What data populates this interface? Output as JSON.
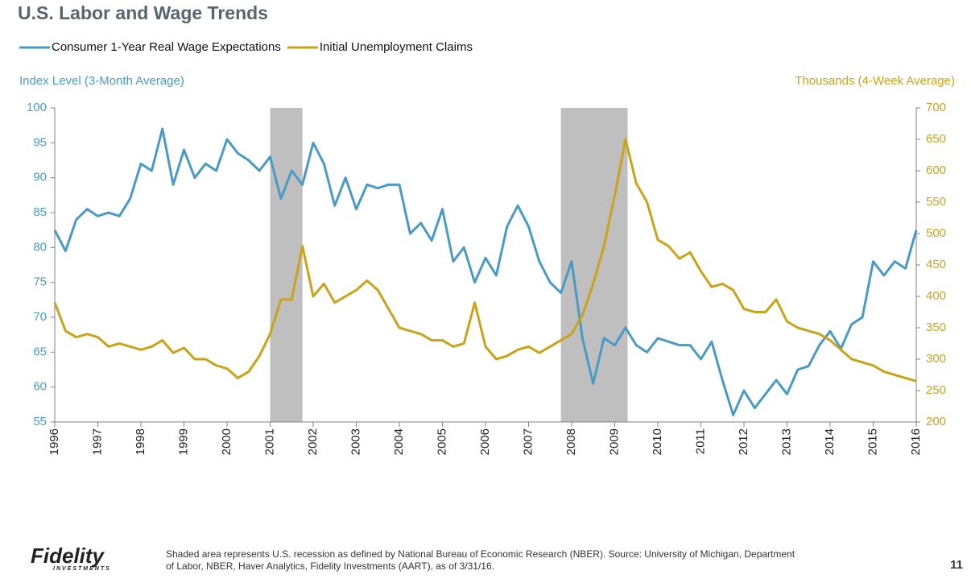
{
  "chart_data": {
    "type": "line",
    "title": "U.S. Labor and Wage Trends",
    "y_label": "Index Level (3-Month Average)",
    "y2_label": "Thousands (4-Week Average)",
    "grid": false,
    "recession_color": "#bfbfbf",
    "recessions": [
      {
        "start": 2001,
        "end": 2001.75
      },
      {
        "start": 2007.75,
        "end": 2009.3
      }
    ],
    "xlim": [
      1996,
      2016
    ],
    "xticks": [
      1996,
      1997,
      1998,
      1999,
      2000,
      2001,
      2002,
      2003,
      2004,
      2005,
      2006,
      2007,
      2008,
      2009,
      2010,
      2011,
      2012,
      2013,
      2014,
      2015,
      2016
    ],
    "ylim": [
      55,
      100
    ],
    "yticks": [
      55,
      60,
      65,
      70,
      75,
      80,
      85,
      90,
      95,
      100
    ],
    "y2lim": [
      200,
      700
    ],
    "y2ticks": [
      200,
      250,
      300,
      350,
      400,
      450,
      500,
      550,
      600,
      650,
      700
    ],
    "x": [
      1996,
      1996.25,
      1996.5,
      1996.75,
      1997,
      1997.25,
      1997.5,
      1997.75,
      1998,
      1998.25,
      1998.5,
      1998.75,
      1999,
      1999.25,
      1999.5,
      1999.75,
      2000,
      2000.25,
      2000.5,
      2000.75,
      2001,
      2001.25,
      2001.5,
      2001.75,
      2002,
      2002.25,
      2002.5,
      2002.75,
      2003,
      2003.25,
      2003.5,
      2003.75,
      2004,
      2004.25,
      2004.5,
      2004.75,
      2005,
      2005.25,
      2005.5,
      2005.75,
      2006,
      2006.25,
      2006.5,
      2006.75,
      2007,
      2007.25,
      2007.5,
      2007.75,
      2008,
      2008.25,
      2008.5,
      2008.75,
      2009,
      2009.25,
      2009.5,
      2009.75,
      2010,
      2010.25,
      2010.5,
      2010.75,
      2011,
      2011.25,
      2011.5,
      2011.75,
      2012,
      2012.25,
      2012.5,
      2012.75,
      2013,
      2013.25,
      2013.5,
      2013.75,
      2014,
      2014.25,
      2014.5,
      2014.75,
      2015,
      2015.25,
      2015.5,
      2015.75,
      2016
    ],
    "series": [
      {
        "name": "Consumer 1-Year Real Wage Expectations",
        "color": "#4a9bc4",
        "axis": "y",
        "values": [
          82.5,
          79.5,
          84,
          85.5,
          84.5,
          85,
          84.5,
          87,
          92,
          91,
          97,
          89,
          94,
          90,
          92,
          91,
          95.5,
          93.5,
          92.5,
          91,
          93,
          87,
          91,
          89,
          95,
          92,
          86,
          90,
          85.5,
          89,
          88.5,
          89,
          89,
          82,
          83.5,
          81,
          85.5,
          78,
          80,
          75,
          78.5,
          76,
          83,
          86,
          83,
          78,
          75,
          73.5,
          78,
          67,
          60.5,
          67,
          66,
          68.5,
          66,
          65,
          67,
          66.5,
          66,
          66,
          64,
          66.5,
          61,
          56,
          59.5,
          57,
          59,
          61,
          59,
          62.5,
          63,
          66,
          68,
          65.5,
          69,
          70,
          78,
          76,
          78,
          77,
          82.5
        ]
      },
      {
        "name": "Initial Unemployment Claims",
        "color": "#c9a31a",
        "axis": "y2",
        "values": [
          390,
          345,
          335,
          340,
          335,
          320,
          325,
          320,
          315,
          320,
          330,
          310,
          318,
          300,
          300,
          290,
          285,
          270,
          280,
          305,
          340,
          395,
          395,
          480,
          400,
          420,
          390,
          400,
          410,
          425,
          410,
          380,
          350,
          345,
          340,
          330,
          330,
          320,
          325,
          390,
          320,
          300,
          305,
          315,
          320,
          310,
          320,
          330,
          340,
          370,
          420,
          480,
          560,
          650,
          580,
          550,
          490,
          480,
          460,
          470,
          440,
          415,
          420,
          410,
          380,
          375,
          375,
          395,
          360,
          350,
          345,
          340,
          330,
          315,
          300,
          295,
          290,
          280,
          275,
          270,
          265
        ]
      }
    ]
  },
  "footer": {
    "note": "Shaded area represents U.S. recession as defined by National Bureau of Economic Research (NBER). Source: University of Michigan, Department",
    "note2": "of Labor, NBER, Haver Analytics, Fidelity Investments (AART), as of 3/31/16.",
    "page": "11",
    "logo": "Fidelity",
    "tagline": "INVESTMENTS"
  }
}
